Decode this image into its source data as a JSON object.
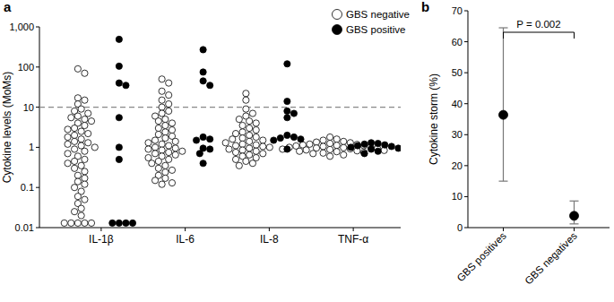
{
  "chart_data": [
    {
      "type": "strip",
      "title": "a",
      "y_label": "Cytokine levels (MoMs)",
      "categories": [
        "IL-1β",
        "IL-6",
        "IL-8",
        "TNF-α"
      ],
      "log": "y",
      "ylim": [
        0.01,
        1000
      ],
      "yticks": [
        0.01,
        0.1,
        1,
        10,
        100,
        {
          "value": 1000,
          "label": "1,000"
        }
      ],
      "threshold": 10,
      "legend": "upper right",
      "grid": false,
      "series": [
        {
          "name": "GBS negative",
          "color": "#ffffff",
          "marker": "open-circle",
          "values": [
            [
              90,
              70,
              17,
              15,
              12,
              9,
              8,
              7,
              6,
              5.5,
              5,
              4.5,
              4,
              3.5,
              3,
              2.8,
              2.5,
              2.2,
              2,
              1.8,
              1.6,
              1.4,
              1.3,
              1.2,
              1.1,
              1,
              0.9,
              0.8,
              0.7,
              0.6,
              0.5,
              0.45,
              0.4,
              0.35,
              0.3,
              0.25,
              0.2,
              0.17,
              0.14,
              0.12,
              0.1,
              0.08,
              0.06,
              0.05,
              0.04,
              0.03,
              0.025,
              0.02,
              0.013,
              0.013,
              0.013,
              0.013,
              0.013
            ],
            [
              50,
              40,
              25,
              20,
              15,
              12,
              10,
              8,
              7,
              6,
              5,
              4.5,
              4,
              3.5,
              3,
              2.7,
              2.4,
              2.1,
              1.9,
              1.7,
              1.5,
              1.4,
              1.3,
              1.2,
              1.1,
              1,
              0.95,
              0.9,
              0.85,
              0.8,
              0.75,
              0.7,
              0.65,
              0.6,
              0.55,
              0.5,
              0.45,
              0.4,
              0.35,
              0.3,
              0.27,
              0.24,
              0.2,
              0.17,
              0.15,
              0.13,
              0.12
            ],
            [
              22,
              15,
              9,
              7,
              6,
              5,
              4.5,
              4,
              3.5,
              3,
              2.7,
              2.4,
              2.2,
              2,
              1.8,
              1.7,
              1.6,
              1.5,
              1.4,
              1.3,
              1.2,
              1.15,
              1.1,
              1.05,
              1,
              0.95,
              0.9,
              0.85,
              0.8,
              0.75,
              0.7,
              0.65,
              0.6,
              0.55,
              0.5,
              0.45,
              0.4,
              0.35
            ],
            [
              1.8,
              1.6,
              1.5,
              1.4,
              1.35,
              1.3,
              1.25,
              1.2,
              1.18,
              1.15,
              1.12,
              1.1,
              1.08,
              1.05,
              1.03,
              1,
              0.98,
              0.96,
              0.94,
              0.92,
              0.9,
              0.88,
              0.86,
              0.84,
              0.82,
              0.8,
              0.78,
              0.75,
              0.72,
              0.7,
              0.65,
              0.6
            ]
          ]
        },
        {
          "name": "GBS positive",
          "color": "#000000",
          "marker": "filled-circle",
          "values": [
            [
              490,
              105,
              40,
              35,
              5.5,
              1,
              0.5,
              0.013,
              0.013,
              0.013,
              0.013
            ],
            [
              270,
              75,
              45,
              35,
              1.8,
              1.6,
              1.5,
              0.95,
              0.9,
              0.7,
              0.4
            ],
            [
              120,
              14,
              8,
              7,
              5.5,
              2,
              1.8,
              1.7,
              1.6,
              1.5,
              0.9
            ],
            [
              1.3,
              1.25,
              1.2,
              1.15,
              1.1,
              1.05,
              1,
              0.95,
              0.9,
              0.8,
              0.7
            ]
          ]
        }
      ]
    },
    {
      "type": "point",
      "title": "b",
      "y_label": "Cytokine storm (%)",
      "categories": [
        "GBS positives",
        "GBS negatives"
      ],
      "ylim": [
        0,
        70
      ],
      "yticks": [
        0,
        10,
        20,
        30,
        40,
        50,
        60,
        70
      ],
      "grid": false,
      "annotations": [
        {
          "text": "P = 0.002"
        }
      ],
      "series": [
        {
          "name": "Cytokine storm",
          "color": "#000000",
          "marker": "filled-circle",
          "values": [
            36.4,
            3.8
          ],
          "lower": [
            15,
            1.2
          ],
          "upper": [
            64.5,
            8.6
          ]
        }
      ]
    }
  ]
}
